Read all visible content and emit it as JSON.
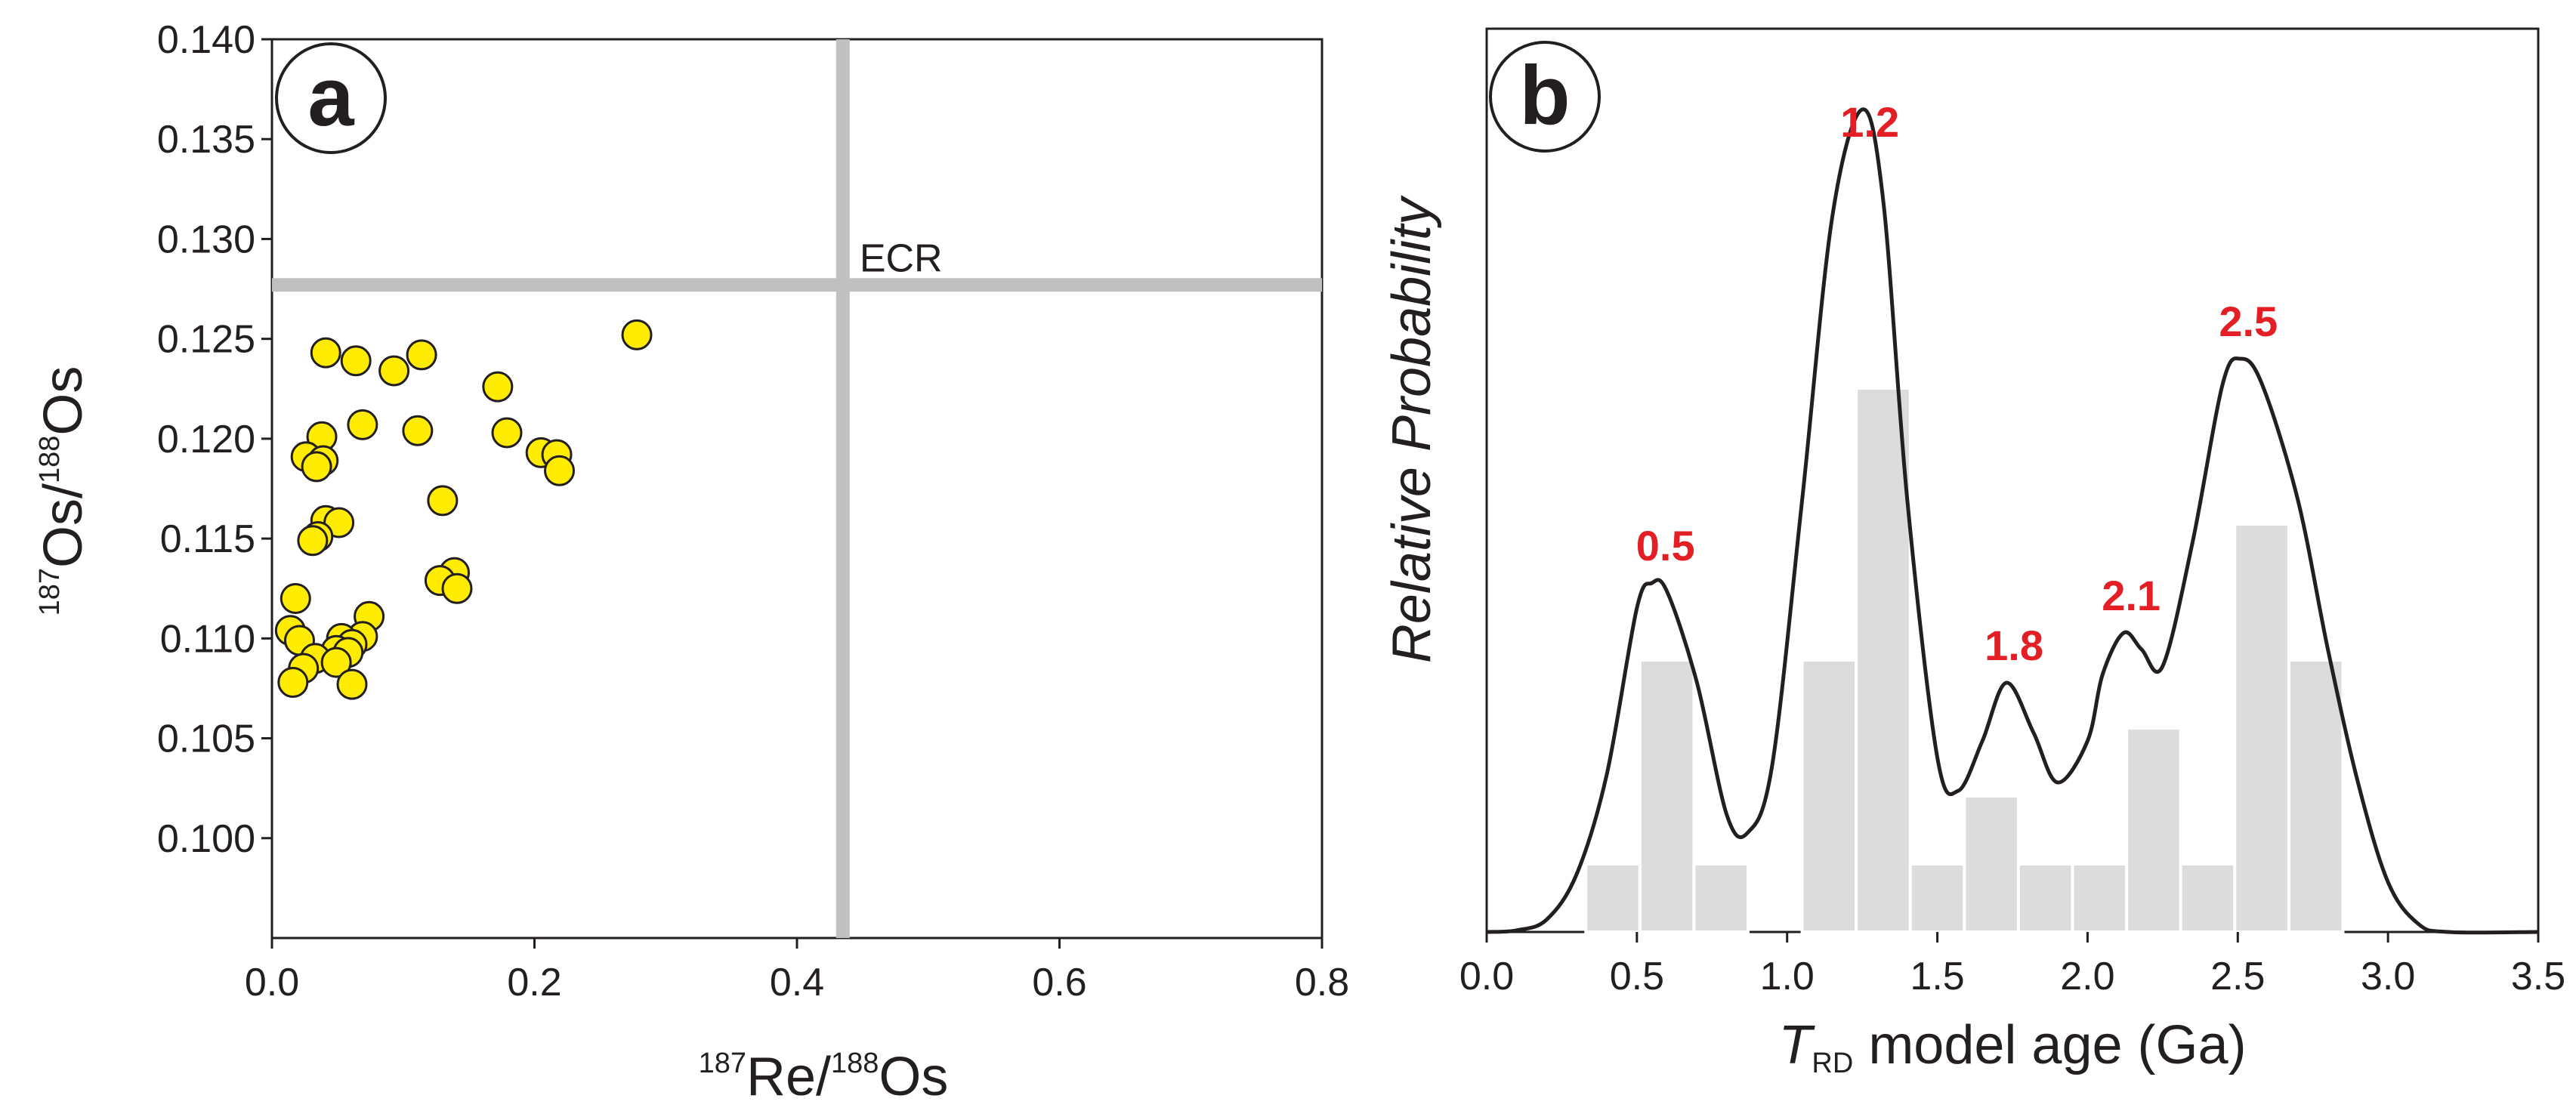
{
  "chart_data": [
    {
      "panel": "a",
      "type": "scatter",
      "xlabel": {
        "sup1": "187",
        "base1": "Re/",
        "sup2": "188",
        "base2": "Os"
      },
      "ylabel": {
        "sup1": "187",
        "base1": "Os/",
        "sup2": "188",
        "base2": "Os"
      },
      "xlim": [
        0,
        0.8
      ],
      "ylim": [
        0.095,
        0.14
      ],
      "xticks": [
        "0.0",
        "0.2",
        "0.4",
        "0.6",
        "0.8"
      ],
      "yticks": [
        "0.100",
        "0.105",
        "0.110",
        "0.115",
        "0.120",
        "0.125",
        "0.130",
        "0.135",
        "0.140"
      ],
      "reference_label": "ECR",
      "reference_x": 0.435,
      "reference_y": 0.1277,
      "marker_color": "#ffec00",
      "reference_color": "#c0c0c0",
      "points": [
        {
          "x": 0.278,
          "y": 0.1252
        },
        {
          "x": 0.041,
          "y": 0.1243
        },
        {
          "x": 0.114,
          "y": 0.1242
        },
        {
          "x": 0.064,
          "y": 0.1239
        },
        {
          "x": 0.093,
          "y": 0.1234
        },
        {
          "x": 0.172,
          "y": 0.1226
        },
        {
          "x": 0.069,
          "y": 0.1207
        },
        {
          "x": 0.111,
          "y": 0.1204
        },
        {
          "x": 0.179,
          "y": 0.1203
        },
        {
          "x": 0.038,
          "y": 0.1201
        },
        {
          "x": 0.205,
          "y": 0.1193
        },
        {
          "x": 0.217,
          "y": 0.1192
        },
        {
          "x": 0.026,
          "y": 0.1191
        },
        {
          "x": 0.039,
          "y": 0.1189
        },
        {
          "x": 0.034,
          "y": 0.1186
        },
        {
          "x": 0.219,
          "y": 0.1184
        },
        {
          "x": 0.13,
          "y": 0.1169
        },
        {
          "x": 0.041,
          "y": 0.1159
        },
        {
          "x": 0.051,
          "y": 0.1158
        },
        {
          "x": 0.035,
          "y": 0.1151
        },
        {
          "x": 0.031,
          "y": 0.1149
        },
        {
          "x": 0.139,
          "y": 0.1133
        },
        {
          "x": 0.128,
          "y": 0.1129
        },
        {
          "x": 0.141,
          "y": 0.1125
        },
        {
          "x": 0.018,
          "y": 0.112
        },
        {
          "x": 0.074,
          "y": 0.1111
        },
        {
          "x": 0.014,
          "y": 0.1104
        },
        {
          "x": 0.021,
          "y": 0.1099
        },
        {
          "x": 0.069,
          "y": 0.1101
        },
        {
          "x": 0.053,
          "y": 0.11
        },
        {
          "x": 0.061,
          "y": 0.1097
        },
        {
          "x": 0.049,
          "y": 0.1094
        },
        {
          "x": 0.058,
          "y": 0.1093
        },
        {
          "x": 0.033,
          "y": 0.109
        },
        {
          "x": 0.049,
          "y": 0.1088
        },
        {
          "x": 0.024,
          "y": 0.1085
        },
        {
          "x": 0.016,
          "y": 0.1078
        },
        {
          "x": 0.061,
          "y": 0.1077
        }
      ]
    },
    {
      "panel": "b",
      "type": "bar",
      "subtype": "histogram with probability density curve",
      "xlabel": {
        "italic": "T",
        "sub": "RD",
        "rest": " model age (Ga)"
      },
      "ylabel": "Relative Probability",
      "xlim": [
        0,
        3.5
      ],
      "xticks": [
        "0.0",
        "0.5",
        "1.0",
        "1.5",
        "2.0",
        "2.5",
        "3.0",
        "3.5"
      ],
      "bar_color": "#dcdcdc",
      "bin_edges": [
        0.33,
        0.51,
        0.69,
        0.87,
        1.05,
        1.23,
        1.41,
        1.59,
        1.77,
        1.95,
        2.13,
        2.31,
        2.49,
        2.67,
        2.85
      ],
      "counts": [
        1,
        4,
        1,
        0,
        4,
        8,
        1,
        2,
        1,
        1,
        3,
        1,
        6,
        4
      ],
      "peak_labels": [
        {
          "label": "0.5",
          "x": 0.57,
          "y": 0.42
        },
        {
          "label": "1.2",
          "x": 1.25,
          "y": 0.93
        },
        {
          "label": "1.8",
          "x": 1.73,
          "y": 0.3
        },
        {
          "label": "2.1",
          "x": 2.12,
          "y": 0.36
        },
        {
          "label": "2.5",
          "x": 2.51,
          "y": 0.69
        }
      ],
      "curve": [
        [
          0.0,
          0.0
        ],
        [
          0.1,
          0.002
        ],
        [
          0.2,
          0.015
        ],
        [
          0.3,
          0.07
        ],
        [
          0.4,
          0.19
        ],
        [
          0.5,
          0.39
        ],
        [
          0.55,
          0.42
        ],
        [
          0.6,
          0.41
        ],
        [
          0.7,
          0.3
        ],
        [
          0.8,
          0.14
        ],
        [
          0.87,
          0.12
        ],
        [
          0.95,
          0.2
        ],
        [
          1.05,
          0.52
        ],
        [
          1.15,
          0.86
        ],
        [
          1.25,
          0.99
        ],
        [
          1.32,
          0.88
        ],
        [
          1.4,
          0.52
        ],
        [
          1.5,
          0.21
        ],
        [
          1.57,
          0.17
        ],
        [
          1.65,
          0.23
        ],
        [
          1.73,
          0.3
        ],
        [
          1.82,
          0.24
        ],
        [
          1.9,
          0.18
        ],
        [
          2.0,
          0.23
        ],
        [
          2.05,
          0.31
        ],
        [
          2.12,
          0.36
        ],
        [
          2.18,
          0.34
        ],
        [
          2.25,
          0.32
        ],
        [
          2.35,
          0.47
        ],
        [
          2.45,
          0.66
        ],
        [
          2.51,
          0.69
        ],
        [
          2.58,
          0.66
        ],
        [
          2.7,
          0.52
        ],
        [
          2.8,
          0.34
        ],
        [
          2.9,
          0.18
        ],
        [
          3.0,
          0.06
        ],
        [
          3.1,
          0.01
        ],
        [
          3.2,
          0.0
        ],
        [
          3.5,
          0.0
        ]
      ]
    }
  ]
}
